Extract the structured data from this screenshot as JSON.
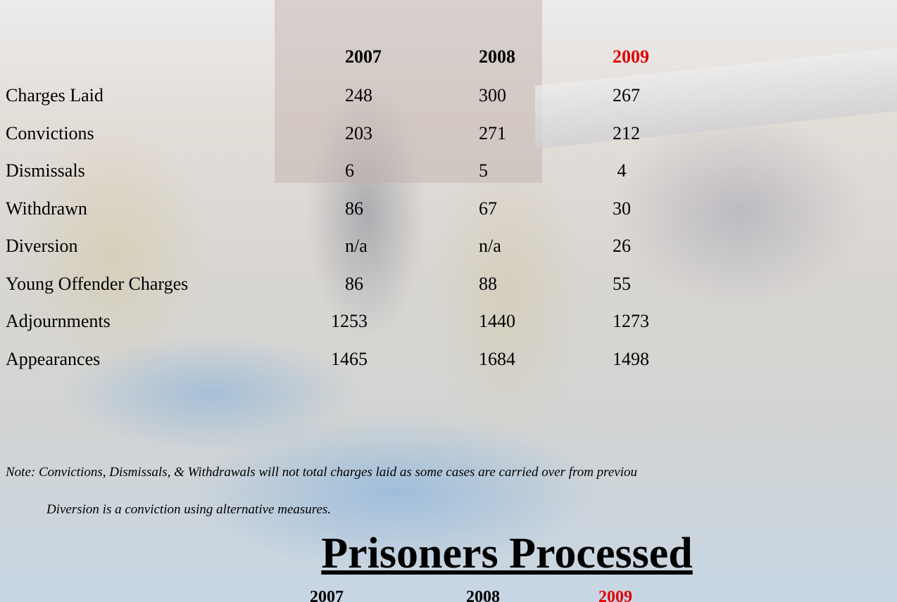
{
  "table": {
    "header": [
      "2007",
      "2008",
      "2009"
    ],
    "rows": [
      [
        "Charges Laid",
        "248",
        "300",
        "267"
      ],
      [
        "Convictions",
        "203",
        "271",
        "212"
      ],
      [
        "Dismissals",
        "6",
        "5",
        " 4"
      ],
      [
        "Withdrawn",
        "86",
        "67",
        "30"
      ],
      [
        "Diversion",
        "n/a",
        "n/a",
        "26"
      ],
      [
        "Young Offender Charges",
        "86",
        "88",
        "55"
      ],
      [
        "Adjournments",
        "1253",
        "1440",
        "1273"
      ],
      [
        "Appearances",
        "1465",
        "1684",
        "1498"
      ]
    ]
  },
  "notes": [
    "Note: Convictions, Dismissals, & Withdrawals will not total charges laid as some cases are carried over from previou",
    "Diversion is a conviction using alternative measures."
  ],
  "section": {
    "title": "Prisoners Processed",
    "header": [
      "2007",
      "2008",
      "2009"
    ]
  }
}
